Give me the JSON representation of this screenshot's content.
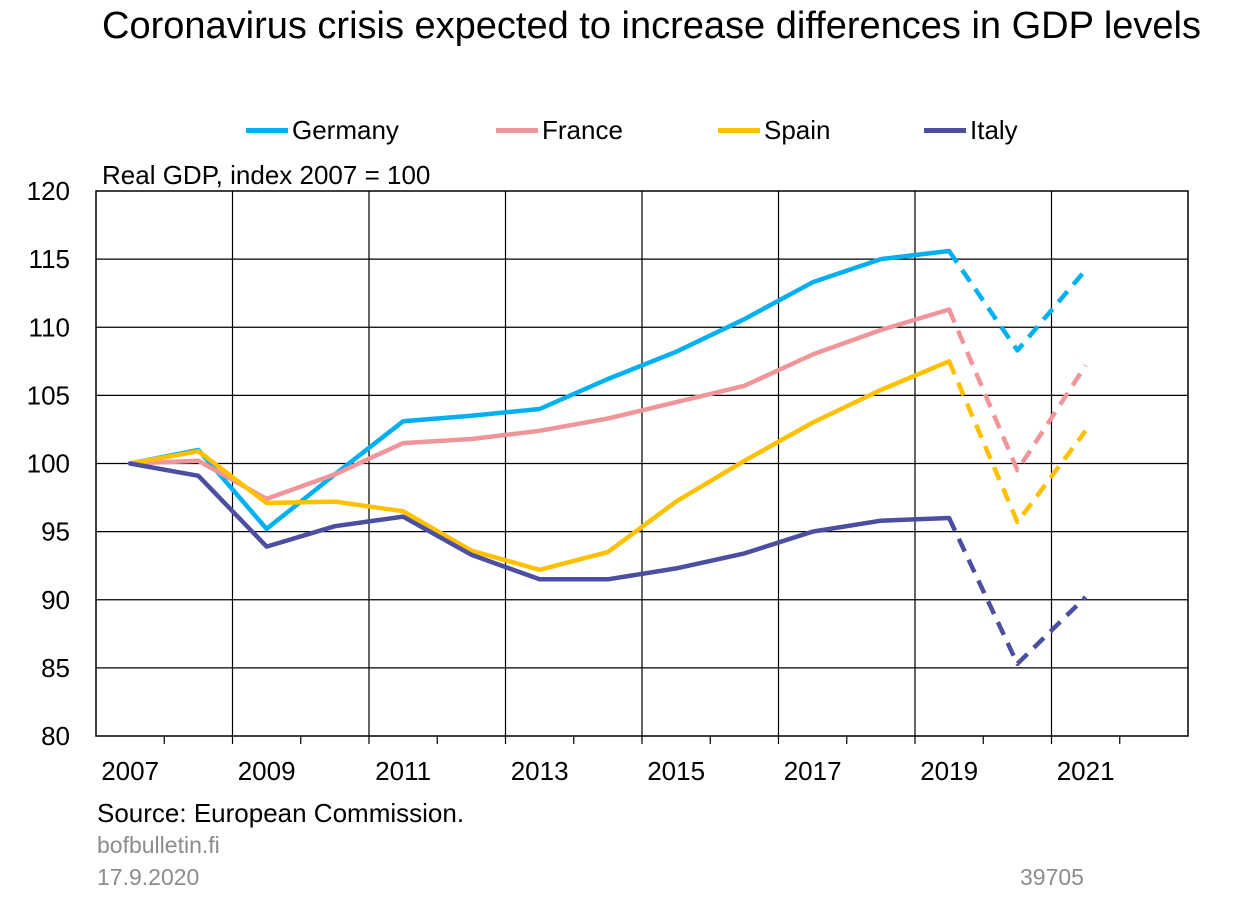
{
  "chart_data": {
    "type": "line",
    "title": "Coronavirus crisis expected to increase differences in GDP levels",
    "subtitle": "Real GDP, index 2007 = 100",
    "x": [
      2007,
      2008,
      2009,
      2010,
      2011,
      2012,
      2013,
      2014,
      2015,
      2016,
      2017,
      2018,
      2019,
      2020,
      2021
    ],
    "x_tick_labels": [
      "2007",
      "2009",
      "2011",
      "2013",
      "2015",
      "2017",
      "2019",
      "2021"
    ],
    "ylim": [
      80,
      120
    ],
    "y_ticks": [
      80,
      85,
      90,
      95,
      100,
      105,
      110,
      115,
      120
    ],
    "grid": true,
    "legend_position": "top",
    "forecast_from": 2019,
    "forecast_style": "dashed",
    "series": [
      {
        "name": "Germany",
        "color": "#00b0f0",
        "values": [
          100,
          101.0,
          95.2,
          99.2,
          103.1,
          103.5,
          104.0,
          106.2,
          108.2,
          110.6,
          113.3,
          115.0,
          115.6,
          108.3,
          114.2
        ]
      },
      {
        "name": "France",
        "color": "#f0959a",
        "values": [
          100,
          100.2,
          97.4,
          99.2,
          101.5,
          101.8,
          102.4,
          103.3,
          104.5,
          105.7,
          108.0,
          109.8,
          111.3,
          99.5,
          107.2
        ]
      },
      {
        "name": "Spain",
        "color": "#ffc000",
        "values": [
          100,
          100.9,
          97.1,
          97.2,
          96.5,
          93.6,
          92.2,
          93.5,
          97.2,
          100.2,
          103.0,
          105.4,
          107.5,
          95.7,
          102.4
        ]
      },
      {
        "name": "Italy",
        "color": "#4c4fa0",
        "values": [
          100,
          99.1,
          93.9,
          95.4,
          96.1,
          93.3,
          91.5,
          91.5,
          92.3,
          93.4,
          95.0,
          95.8,
          96.0,
          85.3,
          90.2
        ]
      }
    ]
  },
  "footer": {
    "source": "Source: European Commission.",
    "site": "bofbulletin.fi",
    "date": "17.9.2020",
    "code": "39705"
  }
}
